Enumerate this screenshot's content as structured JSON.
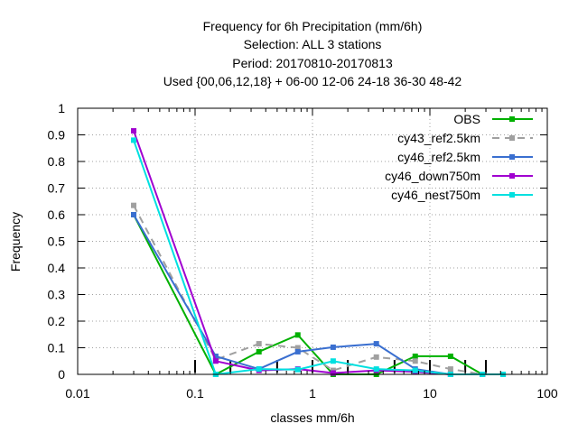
{
  "chart_data": {
    "type": "line",
    "title_lines": [
      "Frequency  for 6h Precipitation (mm/6h)",
      "Selection: ALL      3 stations",
      "Period: 20170810-20170813",
      "Used {00,06,12,18} + 06-00 12-06 24-18 36-30 48-42"
    ],
    "xlabel": "classes mm/6h",
    "ylabel": "Frequency",
    "x_scale": "log",
    "xlim": [
      0.01,
      100
    ],
    "ylim": [
      0,
      1
    ],
    "x_ticks": [
      0.01,
      0.1,
      1,
      10,
      100
    ],
    "x_tick_labels": [
      "0.01",
      "0.1",
      "1",
      "10",
      "100"
    ],
    "y_ticks": [
      0,
      0.1,
      0.2,
      0.3,
      0.4,
      0.5,
      0.6,
      0.7,
      0.8,
      0.9,
      1
    ],
    "y_tick_labels": [
      "0",
      "0.1",
      "0.2",
      "0.3",
      "0.4",
      "0.5",
      "0.6",
      "0.7",
      "0.8",
      "0.9",
      "1"
    ],
    "grid": true,
    "legend_position": "top-right",
    "class_bounds": [
      0.1,
      0.2,
      0.5,
      1,
      2,
      5,
      10,
      20,
      30
    ],
    "series": [
      {
        "name": "OBS",
        "color": "#00b000",
        "dash": "solid",
        "x": [
          0.03,
          0.15,
          0.35,
          0.75,
          1.5,
          3.5,
          7.5,
          15,
          28,
          42
        ],
        "y": [
          0.6,
          0.0,
          0.085,
          0.148,
          0.0,
          0.0,
          0.068,
          0.068,
          0.0,
          0.0
        ]
      },
      {
        "name": "cy43_ref2.5km",
        "color": "#a0a0a0",
        "dash": "dashed",
        "x": [
          0.03,
          0.15,
          0.35,
          0.75,
          1.5,
          3.5,
          7.5,
          15,
          28,
          42
        ],
        "y": [
          0.635,
          0.055,
          0.115,
          0.1,
          0.015,
          0.065,
          0.05,
          0.02,
          0.0,
          0.0
        ]
      },
      {
        "name": "cy46_ref2.5km",
        "color": "#3a6fd0",
        "dash": "solid",
        "x": [
          0.03,
          0.15,
          0.35,
          0.75,
          1.5,
          3.5,
          7.5,
          15,
          28,
          42
        ],
        "y": [
          0.6,
          0.068,
          0.02,
          0.085,
          0.102,
          0.115,
          0.02,
          0.0,
          0.0,
          0.0
        ]
      },
      {
        "name": "cy46_down750m",
        "color": "#a000d0",
        "dash": "solid",
        "x": [
          0.03,
          0.15,
          0.35,
          0.75,
          1.5,
          3.5,
          7.5,
          15,
          28,
          42
        ],
        "y": [
          0.915,
          0.05,
          0.015,
          0.02,
          0.005,
          0.015,
          0.01,
          0.0,
          0.0,
          0.0
        ]
      },
      {
        "name": "cy46_nest750m",
        "color": "#00e0e0",
        "dash": "solid",
        "x": [
          0.03,
          0.15,
          0.35,
          0.75,
          1.5,
          3.5,
          7.5,
          15,
          28,
          42
        ],
        "y": [
          0.88,
          0.0,
          0.02,
          0.018,
          0.05,
          0.02,
          0.015,
          0.0,
          0.0,
          0.0
        ]
      }
    ]
  }
}
